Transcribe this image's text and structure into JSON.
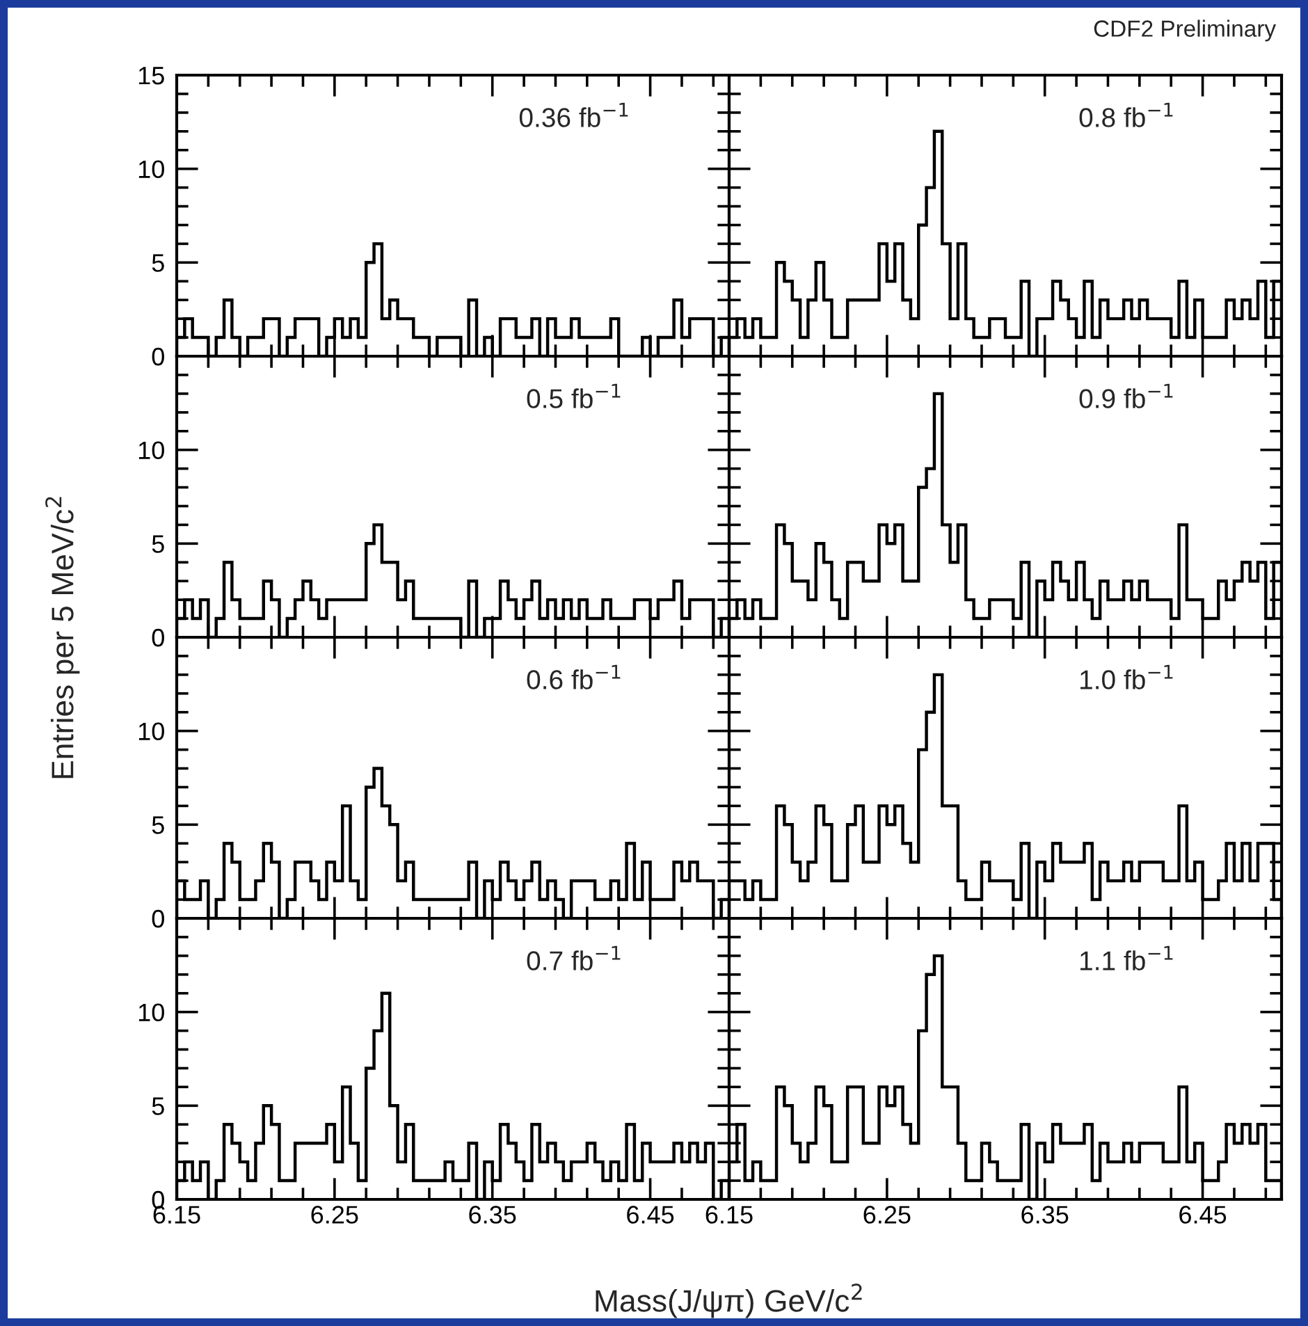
{
  "chart_data": [
    {
      "type": "histogram",
      "annotations": [
        "0.36 fb$^{−1}$"
      ],
      "ylabel": "Entries per 5 MeV/c$^{2}$",
      "color": "#000000",
      "xlim": [
        6.15,
        6.5
      ],
      "ylim": [
        0,
        15
      ],
      "tick_labels": "y",
      "xticks": [
        {
          "value": 6.15,
          "label": null
        },
        {
          "value": 6.17,
          "label": null
        },
        {
          "value": 6.19,
          "label": null
        },
        {
          "value": 6.21,
          "label": null
        },
        {
          "value": 6.23,
          "label": null
        },
        {
          "value": 6.25,
          "label": null
        },
        {
          "value": 6.27,
          "label": null
        },
        {
          "value": 6.29,
          "label": null
        },
        {
          "value": 6.31,
          "label": null
        },
        {
          "value": 6.33,
          "label": null
        },
        {
          "value": 6.35,
          "label": null
        },
        {
          "value": 6.37,
          "label": null
        },
        {
          "value": 6.39,
          "label": null
        },
        {
          "value": 6.41,
          "label": null
        },
        {
          "value": 6.43,
          "label": null
        },
        {
          "value": 6.45,
          "label": null
        },
        {
          "value": 6.47,
          "label": null
        },
        {
          "value": 6.49,
          "label": null
        }
      ],
      "yticks": [
        0,
        {
          "value": 1,
          "label": null
        },
        {
          "value": 2,
          "label": null
        },
        {
          "value": 3,
          "label": null
        },
        {
          "value": 4,
          "label": null
        },
        5,
        {
          "value": 6,
          "label": null
        },
        {
          "value": 7,
          "label": null
        },
        {
          "value": 8,
          "label": null
        },
        {
          "value": 9,
          "label": null
        },
        10,
        {
          "value": 11,
          "label": null
        },
        {
          "value": 12,
          "label": null
        },
        {
          "value": 13,
          "label": null
        },
        {
          "value": 14,
          "label": null
        },
        15
      ],
      "bins": [
        6.15,
        6.155,
        6.16,
        6.165,
        6.17,
        6.175,
        6.18,
        6.185,
        6.19,
        6.195,
        6.2,
        6.205,
        6.21,
        6.215,
        6.22,
        6.225,
        6.23,
        6.235,
        6.24,
        6.245,
        6.25,
        6.255,
        6.26,
        6.265,
        6.27,
        6.275,
        6.28,
        6.285,
        6.29,
        6.295,
        6.3,
        6.305,
        6.31,
        6.315,
        6.32,
        6.325,
        6.33,
        6.335,
        6.34,
        6.345,
        6.35,
        6.355,
        6.36,
        6.365,
        6.37,
        6.375,
        6.38,
        6.385,
        6.39,
        6.395,
        6.4,
        6.405,
        6.41,
        6.415,
        6.42,
        6.425,
        6.43,
        6.435,
        6.44,
        6.445,
        6.45,
        6.455,
        6.46,
        6.465,
        6.47,
        6.475,
        6.48,
        6.485,
        6.49,
        6.495,
        6.5
      ],
      "values": [
        1,
        2,
        1,
        1,
        0,
        1,
        3,
        1,
        0,
        1,
        1,
        2,
        2,
        0,
        1,
        2,
        2,
        2,
        0,
        1,
        2,
        1,
        2,
        1,
        5,
        6,
        2,
        3,
        2,
        2,
        1,
        1,
        0,
        1,
        1,
        1,
        0,
        3,
        0,
        1,
        0,
        2,
        2,
        1,
        1,
        2,
        0,
        2,
        1,
        1,
        2,
        1,
        1,
        1,
        1,
        2,
        0,
        0,
        0,
        1,
        0,
        1,
        1,
        3,
        1,
        2,
        2,
        2,
        0,
        1
      ]
    },
    {
      "type": "histogram",
      "annotations": [
        "0.8 fb$^{−1}$",
        "CDF2 Preliminary"
      ],
      "color": "#000000",
      "xlim": [
        6.15,
        6.5
      ],
      "ylim": [
        0,
        15
      ],
      "tick_labels": false,
      "xticks": [
        {
          "value": 6.15,
          "label": null
        },
        {
          "value": 6.17,
          "label": null
        },
        {
          "value": 6.19,
          "label": null
        },
        {
          "value": 6.21,
          "label": null
        },
        {
          "value": 6.23,
          "label": null
        },
        {
          "value": 6.25,
          "label": null
        },
        {
          "value": 6.27,
          "label": null
        },
        {
          "value": 6.29,
          "label": null
        },
        {
          "value": 6.31,
          "label": null
        },
        {
          "value": 6.33,
          "label": null
        },
        {
          "value": 6.35,
          "label": null
        },
        {
          "value": 6.37,
          "label": null
        },
        {
          "value": 6.39,
          "label": null
        },
        {
          "value": 6.41,
          "label": null
        },
        {
          "value": 6.43,
          "label": null
        },
        {
          "value": 6.45,
          "label": null
        },
        {
          "value": 6.47,
          "label": null
        },
        {
          "value": 6.49,
          "label": null
        }
      ],
      "yticks": [
        0,
        {
          "value": 1,
          "label": null
        },
        {
          "value": 2,
          "label": null
        },
        {
          "value": 3,
          "label": null
        },
        {
          "value": 4,
          "label": null
        },
        5,
        {
          "value": 6,
          "label": null
        },
        {
          "value": 7,
          "label": null
        },
        {
          "value": 8,
          "label": null
        },
        {
          "value": 9,
          "label": null
        },
        10,
        {
          "value": 11,
          "label": null
        },
        {
          "value": 12,
          "label": null
        },
        {
          "value": 13,
          "label": null
        },
        {
          "value": 14,
          "label": null
        }
      ],
      "bins": [
        6.15,
        6.155,
        6.16,
        6.165,
        6.17,
        6.175,
        6.18,
        6.185,
        6.19,
        6.195,
        6.2,
        6.205,
        6.21,
        6.215,
        6.22,
        6.225,
        6.23,
        6.235,
        6.24,
        6.245,
        6.25,
        6.255,
        6.26,
        6.265,
        6.27,
        6.275,
        6.28,
        6.285,
        6.29,
        6.295,
        6.3,
        6.305,
        6.31,
        6.315,
        6.32,
        6.325,
        6.33,
        6.335,
        6.34,
        6.345,
        6.35,
        6.355,
        6.36,
        6.365,
        6.37,
        6.375,
        6.38,
        6.385,
        6.39,
        6.395,
        6.4,
        6.405,
        6.41,
        6.415,
        6.42,
        6.425,
        6.43,
        6.435,
        6.44,
        6.445,
        6.45,
        6.455,
        6.46,
        6.465,
        6.47,
        6.475,
        6.48,
        6.485,
        6.49,
        6.495,
        6.5
      ],
      "values": [
        1,
        2,
        1,
        2,
        1,
        1,
        5,
        4,
        3,
        1,
        3,
        5,
        3,
        1,
        1,
        3,
        3,
        3,
        3,
        6,
        4,
        6,
        3,
        2,
        7,
        9,
        12,
        6,
        2,
        6,
        2,
        1,
        1,
        2,
        2,
        1,
        1,
        4,
        0,
        2,
        2,
        4,
        3,
        2,
        1,
        4,
        1,
        3,
        2,
        2,
        3,
        2,
        3,
        2,
        2,
        2,
        1,
        4,
        1,
        3,
        1,
        1,
        1,
        3,
        2,
        3,
        2,
        4,
        1,
        4
      ]
    },
    {
      "type": "histogram",
      "annotations": [
        "0.5 fb$^{−1}$"
      ],
      "color": "#000000",
      "xlim": [
        6.15,
        6.5
      ],
      "ylim": [
        0,
        15
      ],
      "tick_labels": "y",
      "xticks": [
        {
          "value": 6.15,
          "label": null
        },
        {
          "value": 6.17,
          "label": null
        },
        {
          "value": 6.19,
          "label": null
        },
        {
          "value": 6.21,
          "label": null
        },
        {
          "value": 6.23,
          "label": null
        },
        {
          "value": 6.25,
          "label": null
        },
        {
          "value": 6.27,
          "label": null
        },
        {
          "value": 6.29,
          "label": null
        },
        {
          "value": 6.31,
          "label": null
        },
        {
          "value": 6.33,
          "label": null
        },
        {
          "value": 6.35,
          "label": null
        },
        {
          "value": 6.37,
          "label": null
        },
        {
          "value": 6.39,
          "label": null
        },
        {
          "value": 6.41,
          "label": null
        },
        {
          "value": 6.43,
          "label": null
        },
        {
          "value": 6.45,
          "label": null
        },
        {
          "value": 6.47,
          "label": null
        },
        {
          "value": 6.49,
          "label": null
        }
      ],
      "yticks": [
        0,
        {
          "value": 1,
          "label": null
        },
        {
          "value": 2,
          "label": null
        },
        {
          "value": 3,
          "label": null
        },
        {
          "value": 4,
          "label": null
        },
        5,
        {
          "value": 6,
          "label": null
        },
        {
          "value": 7,
          "label": null
        },
        {
          "value": 8,
          "label": null
        },
        {
          "value": 9,
          "label": null
        },
        10,
        {
          "value": 11,
          "label": null
        },
        {
          "value": 12,
          "label": null
        },
        {
          "value": 13,
          "label": null
        },
        {
          "value": 14,
          "label": null
        }
      ],
      "bins": [
        6.15,
        6.155,
        6.16,
        6.165,
        6.17,
        6.175,
        6.18,
        6.185,
        6.19,
        6.195,
        6.2,
        6.205,
        6.21,
        6.215,
        6.22,
        6.225,
        6.23,
        6.235,
        6.24,
        6.245,
        6.25,
        6.255,
        6.26,
        6.265,
        6.27,
        6.275,
        6.28,
        6.285,
        6.29,
        6.295,
        6.3,
        6.305,
        6.31,
        6.315,
        6.32,
        6.325,
        6.33,
        6.335,
        6.34,
        6.345,
        6.35,
        6.355,
        6.36,
        6.365,
        6.37,
        6.375,
        6.38,
        6.385,
        6.39,
        6.395,
        6.4,
        6.405,
        6.41,
        6.415,
        6.42,
        6.425,
        6.43,
        6.435,
        6.44,
        6.445,
        6.45,
        6.455,
        6.46,
        6.465,
        6.47,
        6.475,
        6.48,
        6.485,
        6.49,
        6.495,
        6.5
      ],
      "values": [
        1,
        2,
        1,
        2,
        0,
        1,
        4,
        2,
        1,
        1,
        1,
        3,
        2,
        0,
        1,
        2,
        3,
        2,
        1,
        2,
        2,
        2,
        2,
        2,
        5,
        6,
        4,
        4,
        2,
        3,
        1,
        1,
        1,
        1,
        1,
        1,
        0,
        3,
        0,
        1,
        1,
        3,
        2,
        1,
        2,
        3,
        1,
        2,
        1,
        2,
        1,
        2,
        1,
        1,
        2,
        1,
        1,
        1,
        2,
        2,
        1,
        2,
        2,
        3,
        1,
        2,
        2,
        2,
        0,
        1
      ]
    },
    {
      "type": "histogram",
      "annotations": [
        "0.9 fb$^{−1}$"
      ],
      "color": "#000000",
      "xlim": [
        6.15,
        6.5
      ],
      "ylim": [
        0,
        15
      ],
      "tick_labels": false,
      "xticks": [
        {
          "value": 6.15,
          "label": null
        },
        {
          "value": 6.17,
          "label": null
        },
        {
          "value": 6.19,
          "label": null
        },
        {
          "value": 6.21,
          "label": null
        },
        {
          "value": 6.23,
          "label": null
        },
        {
          "value": 6.25,
          "label": null
        },
        {
          "value": 6.27,
          "label": null
        },
        {
          "value": 6.29,
          "label": null
        },
        {
          "value": 6.31,
          "label": null
        },
        {
          "value": 6.33,
          "label": null
        },
        {
          "value": 6.35,
          "label": null
        },
        {
          "value": 6.37,
          "label": null
        },
        {
          "value": 6.39,
          "label": null
        },
        {
          "value": 6.41,
          "label": null
        },
        {
          "value": 6.43,
          "label": null
        },
        {
          "value": 6.45,
          "label": null
        },
        {
          "value": 6.47,
          "label": null
        },
        {
          "value": 6.49,
          "label": null
        }
      ],
      "yticks": [
        0,
        {
          "value": 1,
          "label": null
        },
        {
          "value": 2,
          "label": null
        },
        {
          "value": 3,
          "label": null
        },
        {
          "value": 4,
          "label": null
        },
        5,
        {
          "value": 6,
          "label": null
        },
        {
          "value": 7,
          "label": null
        },
        {
          "value": 8,
          "label": null
        },
        {
          "value": 9,
          "label": null
        },
        10,
        {
          "value": 11,
          "label": null
        },
        {
          "value": 12,
          "label": null
        },
        {
          "value": 13,
          "label": null
        },
        {
          "value": 14,
          "label": null
        }
      ],
      "bins": [
        6.15,
        6.155,
        6.16,
        6.165,
        6.17,
        6.175,
        6.18,
        6.185,
        6.19,
        6.195,
        6.2,
        6.205,
        6.21,
        6.215,
        6.22,
        6.225,
        6.23,
        6.235,
        6.24,
        6.245,
        6.25,
        6.255,
        6.26,
        6.265,
        6.27,
        6.275,
        6.28,
        6.285,
        6.29,
        6.295,
        6.3,
        6.305,
        6.31,
        6.315,
        6.32,
        6.325,
        6.33,
        6.335,
        6.34,
        6.345,
        6.35,
        6.355,
        6.36,
        6.365,
        6.37,
        6.375,
        6.38,
        6.385,
        6.39,
        6.395,
        6.4,
        6.405,
        6.41,
        6.415,
        6.42,
        6.425,
        6.43,
        6.435,
        6.44,
        6.445,
        6.45,
        6.455,
        6.46,
        6.465,
        6.47,
        6.475,
        6.48,
        6.485,
        6.49,
        6.495,
        6.5
      ],
      "values": [
        1,
        2,
        1,
        2,
        1,
        1,
        6,
        5,
        3,
        3,
        2,
        5,
        4,
        2,
        1,
        4,
        4,
        3,
        3,
        6,
        5,
        6,
        3,
        3,
        8,
        9,
        13,
        6,
        4,
        6,
        2,
        1,
        1,
        2,
        2,
        2,
        1,
        4,
        0,
        3,
        2,
        4,
        3,
        2,
        4,
        2,
        1,
        3,
        2,
        2,
        3,
        2,
        3,
        2,
        2,
        2,
        1,
        6,
        2,
        2,
        1,
        1,
        3,
        2,
        3,
        4,
        3,
        4,
        1,
        4
      ]
    },
    {
      "type": "histogram",
      "annotations": [
        "0.6 fb$^{−1}$"
      ],
      "color": "#000000",
      "xlim": [
        6.15,
        6.5
      ],
      "ylim": [
        0,
        15
      ],
      "tick_labels": "y",
      "xticks": [
        {
          "value": 6.15,
          "label": null
        },
        {
          "value": 6.17,
          "label": null
        },
        {
          "value": 6.19,
          "label": null
        },
        {
          "value": 6.21,
          "label": null
        },
        {
          "value": 6.23,
          "label": null
        },
        {
          "value": 6.25,
          "label": null
        },
        {
          "value": 6.27,
          "label": null
        },
        {
          "value": 6.29,
          "label": null
        },
        {
          "value": 6.31,
          "label": null
        },
        {
          "value": 6.33,
          "label": null
        },
        {
          "value": 6.35,
          "label": null
        },
        {
          "value": 6.37,
          "label": null
        },
        {
          "value": 6.39,
          "label": null
        },
        {
          "value": 6.41,
          "label": null
        },
        {
          "value": 6.43,
          "label": null
        },
        {
          "value": 6.45,
          "label": null
        },
        {
          "value": 6.47,
          "label": null
        },
        {
          "value": 6.49,
          "label": null
        }
      ],
      "yticks": [
        0,
        {
          "value": 1,
          "label": null
        },
        {
          "value": 2,
          "label": null
        },
        {
          "value": 3,
          "label": null
        },
        {
          "value": 4,
          "label": null
        },
        5,
        {
          "value": 6,
          "label": null
        },
        {
          "value": 7,
          "label": null
        },
        {
          "value": 8,
          "label": null
        },
        {
          "value": 9,
          "label": null
        },
        10,
        {
          "value": 11,
          "label": null
        },
        {
          "value": 12,
          "label": null
        },
        {
          "value": 13,
          "label": null
        },
        {
          "value": 14,
          "label": null
        }
      ],
      "bins": [
        6.15,
        6.155,
        6.16,
        6.165,
        6.17,
        6.175,
        6.18,
        6.185,
        6.19,
        6.195,
        6.2,
        6.205,
        6.21,
        6.215,
        6.22,
        6.225,
        6.23,
        6.235,
        6.24,
        6.245,
        6.25,
        6.255,
        6.26,
        6.265,
        6.27,
        6.275,
        6.28,
        6.285,
        6.29,
        6.295,
        6.3,
        6.305,
        6.31,
        6.315,
        6.32,
        6.325,
        6.33,
        6.335,
        6.34,
        6.345,
        6.35,
        6.355,
        6.36,
        6.365,
        6.37,
        6.375,
        6.38,
        6.385,
        6.39,
        6.395,
        6.4,
        6.405,
        6.41,
        6.415,
        6.42,
        6.425,
        6.43,
        6.435,
        6.44,
        6.445,
        6.45,
        6.455,
        6.46,
        6.465,
        6.47,
        6.475,
        6.48,
        6.485,
        6.49,
        6.495,
        6.5
      ],
      "values": [
        2,
        1,
        1,
        2,
        0,
        1,
        4,
        3,
        1,
        1,
        2,
        4,
        3,
        0,
        1,
        3,
        3,
        2,
        1,
        3,
        2,
        6,
        2,
        1,
        7,
        8,
        6,
        5,
        2,
        3,
        1,
        1,
        1,
        1,
        1,
        1,
        1,
        3,
        0,
        2,
        1,
        3,
        2,
        1,
        2,
        3,
        1,
        2,
        1,
        0,
        2,
        2,
        2,
        1,
        1,
        2,
        1,
        4,
        1,
        3,
        1,
        1,
        1,
        3,
        2,
        3,
        2,
        2,
        0,
        1
      ]
    },
    {
      "type": "histogram",
      "annotations": [
        "1.0 fb$^{−1}$"
      ],
      "color": "#000000",
      "xlim": [
        6.15,
        6.5
      ],
      "ylim": [
        0,
        15
      ],
      "tick_labels": false,
      "xticks": [
        {
          "value": 6.15,
          "label": null
        },
        {
          "value": 6.17,
          "label": null
        },
        {
          "value": 6.19,
          "label": null
        },
        {
          "value": 6.21,
          "label": null
        },
        {
          "value": 6.23,
          "label": null
        },
        {
          "value": 6.25,
          "label": null
        },
        {
          "value": 6.27,
          "label": null
        },
        {
          "value": 6.29,
          "label": null
        },
        {
          "value": 6.31,
          "label": null
        },
        {
          "value": 6.33,
          "label": null
        },
        {
          "value": 6.35,
          "label": null
        },
        {
          "value": 6.37,
          "label": null
        },
        {
          "value": 6.39,
          "label": null
        },
        {
          "value": 6.41,
          "label": null
        },
        {
          "value": 6.43,
          "label": null
        },
        {
          "value": 6.45,
          "label": null
        },
        {
          "value": 6.47,
          "label": null
        },
        {
          "value": 6.49,
          "label": null
        }
      ],
      "yticks": [
        0,
        {
          "value": 1,
          "label": null
        },
        {
          "value": 2,
          "label": null
        },
        {
          "value": 3,
          "label": null
        },
        {
          "value": 4,
          "label": null
        },
        5,
        {
          "value": 6,
          "label": null
        },
        {
          "value": 7,
          "label": null
        },
        {
          "value": 8,
          "label": null
        },
        {
          "value": 9,
          "label": null
        },
        10,
        {
          "value": 11,
          "label": null
        },
        {
          "value": 12,
          "label": null
        },
        {
          "value": 13,
          "label": null
        },
        {
          "value": 14,
          "label": null
        }
      ],
      "bins": [
        6.15,
        6.155,
        6.16,
        6.165,
        6.17,
        6.175,
        6.18,
        6.185,
        6.19,
        6.195,
        6.2,
        6.205,
        6.21,
        6.215,
        6.22,
        6.225,
        6.23,
        6.235,
        6.24,
        6.245,
        6.25,
        6.255,
        6.26,
        6.265,
        6.27,
        6.275,
        6.28,
        6.285,
        6.29,
        6.295,
        6.3,
        6.305,
        6.31,
        6.315,
        6.32,
        6.325,
        6.33,
        6.335,
        6.34,
        6.345,
        6.35,
        6.355,
        6.36,
        6.365,
        6.37,
        6.375,
        6.38,
        6.385,
        6.39,
        6.395,
        6.4,
        6.405,
        6.41,
        6.415,
        6.42,
        6.425,
        6.43,
        6.435,
        6.44,
        6.445,
        6.45,
        6.455,
        6.46,
        6.465,
        6.47,
        6.475,
        6.48,
        6.485,
        6.49,
        6.495,
        6.5
      ],
      "values": [
        2,
        2,
        1,
        2,
        1,
        1,
        6,
        5,
        3,
        2,
        3,
        6,
        5,
        2,
        2,
        5,
        6,
        3,
        3,
        6,
        5,
        6,
        4,
        3,
        9,
        11,
        13,
        6,
        6,
        2,
        1,
        1,
        3,
        2,
        2,
        2,
        1,
        4,
        0,
        3,
        2,
        4,
        3,
        3,
        3,
        4,
        1,
        3,
        2,
        2,
        3,
        2,
        3,
        3,
        3,
        2,
        2,
        6,
        2,
        3,
        1,
        1,
        2,
        4,
        2,
        4,
        2,
        4,
        4,
        1
      ]
    },
    {
      "type": "histogram",
      "annotations": [
        "0.7 fb$^{−1}$"
      ],
      "xlabel": "Mass(J/ψπ) GeV/c$^{2}$",
      "color": "#000000",
      "xlim": [
        6.15,
        6.5
      ],
      "ylim": [
        0,
        15
      ],
      "xticks": [
        {
          "value": 6.15,
          "label": "6.15"
        },
        {
          "value": 6.17,
          "label": null
        },
        {
          "value": 6.19,
          "label": null
        },
        {
          "value": 6.21,
          "label": null
        },
        {
          "value": 6.23,
          "label": null
        },
        {
          "value": 6.25,
          "label": "6.25"
        },
        {
          "value": 6.27,
          "label": null
        },
        {
          "value": 6.29,
          "label": null
        },
        {
          "value": 6.31,
          "label": null
        },
        {
          "value": 6.33,
          "label": null
        },
        {
          "value": 6.35,
          "label": "6.35"
        },
        {
          "value": 6.37,
          "label": null
        },
        {
          "value": 6.39,
          "label": null
        },
        {
          "value": 6.41,
          "label": null
        },
        {
          "value": 6.43,
          "label": null
        },
        {
          "value": 6.45,
          "label": "6.45"
        },
        {
          "value": 6.47,
          "label": null
        },
        {
          "value": 6.49,
          "label": null
        }
      ],
      "yticks": [
        0,
        {
          "value": 1,
          "label": null
        },
        {
          "value": 2,
          "label": null
        },
        {
          "value": 3,
          "label": null
        },
        {
          "value": 4,
          "label": null
        },
        5,
        {
          "value": 6,
          "label": null
        },
        {
          "value": 7,
          "label": null
        },
        {
          "value": 8,
          "label": null
        },
        {
          "value": 9,
          "label": null
        },
        10,
        {
          "value": 11,
          "label": null
        },
        {
          "value": 12,
          "label": null
        },
        {
          "value": 13,
          "label": null
        },
        {
          "value": 14,
          "label": null
        }
      ],
      "bins": [
        6.15,
        6.155,
        6.16,
        6.165,
        6.17,
        6.175,
        6.18,
        6.185,
        6.19,
        6.195,
        6.2,
        6.205,
        6.21,
        6.215,
        6.22,
        6.225,
        6.23,
        6.235,
        6.24,
        6.245,
        6.25,
        6.255,
        6.26,
        6.265,
        6.27,
        6.275,
        6.28,
        6.285,
        6.29,
        6.295,
        6.3,
        6.305,
        6.31,
        6.315,
        6.32,
        6.325,
        6.33,
        6.335,
        6.34,
        6.345,
        6.35,
        6.355,
        6.36,
        6.365,
        6.37,
        6.375,
        6.38,
        6.385,
        6.39,
        6.395,
        6.4,
        6.405,
        6.41,
        6.415,
        6.42,
        6.425,
        6.43,
        6.435,
        6.44,
        6.445,
        6.45,
        6.455,
        6.46,
        6.465,
        6.47,
        6.475,
        6.48,
        6.485,
        6.49,
        6.495,
        6.5
      ],
      "values": [
        1,
        2,
        1,
        2,
        0,
        1,
        4,
        3,
        2,
        1,
        3,
        5,
        4,
        1,
        1,
        3,
        3,
        3,
        3,
        4,
        2,
        6,
        3,
        1,
        7,
        9,
        11,
        5,
        2,
        4,
        1,
        1,
        1,
        1,
        2,
        1,
        1,
        3,
        0,
        2,
        1,
        4,
        3,
        2,
        1,
        4,
        2,
        3,
        2,
        1,
        2,
        2,
        3,
        2,
        1,
        2,
        1,
        4,
        1,
        3,
        2,
        2,
        2,
        3,
        2,
        3,
        2,
        3,
        0,
        1
      ]
    },
    {
      "type": "histogram",
      "annotations": [
        "1.1 fb$^{−1}$"
      ],
      "color": "#000000",
      "xlim": [
        6.15,
        6.5
      ],
      "ylim": [
        0,
        15
      ],
      "tick_labels": "x",
      "xticks": [
        {
          "value": 6.15,
          "label": "6.15"
        },
        {
          "value": 6.17,
          "label": null
        },
        {
          "value": 6.19,
          "label": null
        },
        {
          "value": 6.21,
          "label": null
        },
        {
          "value": 6.23,
          "label": null
        },
        {
          "value": 6.25,
          "label": "6.25"
        },
        {
          "value": 6.27,
          "label": null
        },
        {
          "value": 6.29,
          "label": null
        },
        {
          "value": 6.31,
          "label": null
        },
        {
          "value": 6.33,
          "label": null
        },
        {
          "value": 6.35,
          "label": "6.35"
        },
        {
          "value": 6.37,
          "label": null
        },
        {
          "value": 6.39,
          "label": null
        },
        {
          "value": 6.41,
          "label": null
        },
        {
          "value": 6.43,
          "label": null
        },
        {
          "value": 6.45,
          "label": "6.45"
        },
        {
          "value": 6.47,
          "label": null
        },
        {
          "value": 6.49,
          "label": null
        }
      ],
      "yticks": [
        0,
        {
          "value": 1,
          "label": null
        },
        {
          "value": 2,
          "label": null
        },
        {
          "value": 3,
          "label": null
        },
        {
          "value": 4,
          "label": null
        },
        5,
        {
          "value": 6,
          "label": null
        },
        {
          "value": 7,
          "label": null
        },
        {
          "value": 8,
          "label": null
        },
        {
          "value": 9,
          "label": null
        },
        10,
        {
          "value": 11,
          "label": null
        },
        {
          "value": 12,
          "label": null
        },
        {
          "value": 13,
          "label": null
        },
        {
          "value": 14,
          "label": null
        }
      ],
      "bins": [
        6.15,
        6.155,
        6.16,
        6.165,
        6.17,
        6.175,
        6.18,
        6.185,
        6.19,
        6.195,
        6.2,
        6.205,
        6.21,
        6.215,
        6.22,
        6.225,
        6.23,
        6.235,
        6.24,
        6.245,
        6.25,
        6.255,
        6.26,
        6.265,
        6.27,
        6.275,
        6.28,
        6.285,
        6.29,
        6.295,
        6.3,
        6.305,
        6.31,
        6.315,
        6.32,
        6.325,
        6.33,
        6.335,
        6.34,
        6.345,
        6.35,
        6.355,
        6.36,
        6.365,
        6.37,
        6.375,
        6.38,
        6.385,
        6.39,
        6.395,
        6.4,
        6.405,
        6.41,
        6.415,
        6.42,
        6.425,
        6.43,
        6.435,
        6.44,
        6.445,
        6.45,
        6.455,
        6.46,
        6.465,
        6.47,
        6.475,
        6.48,
        6.485,
        6.49,
        6.495,
        6.5
      ],
      "values": [
        2,
        4,
        1,
        2,
        1,
        1,
        6,
        5,
        3,
        2,
        3,
        6,
        5,
        2,
        2,
        6,
        6,
        3,
        3,
        6,
        5,
        6,
        4,
        3,
        9,
        12,
        13,
        6,
        6,
        3,
        1,
        1,
        3,
        2,
        1,
        1,
        1,
        4,
        0,
        3,
        2,
        4,
        3,
        3,
        3,
        4,
        1,
        3,
        2,
        2,
        3,
        2,
        3,
        3,
        3,
        2,
        2,
        6,
        2,
        3,
        1,
        1,
        2,
        4,
        3,
        4,
        3,
        4,
        1,
        1
      ]
    }
  ]
}
